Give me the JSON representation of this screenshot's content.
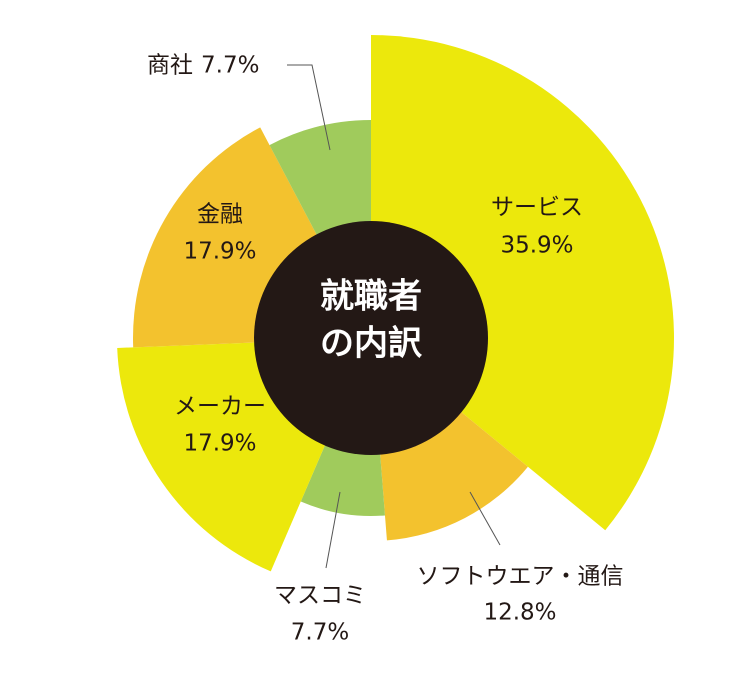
{
  "chart_data": {
    "type": "pie",
    "center_text": [
      "就職者",
      "の内訳"
    ],
    "categories": [
      "サービス",
      "ソフトウエア・通信",
      "マスコミ",
      "メーカー",
      "金融",
      "商社"
    ],
    "values": [
      35.9,
      12.8,
      7.7,
      17.9,
      17.9,
      7.7
    ],
    "value_labels": [
      "35.9%",
      "12.8%",
      "7.7%",
      "17.9%",
      "17.9%",
      "7.7%"
    ],
    "colors": [
      "#ece80c",
      "#f3c22e",
      "#a0cb5c",
      "#ece80c",
      "#f3c22e",
      "#a0cb5c"
    ]
  }
}
